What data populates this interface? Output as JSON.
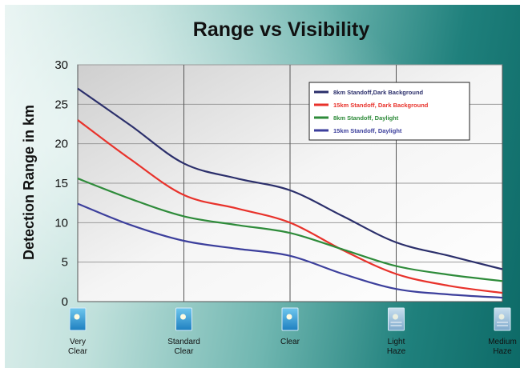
{
  "chart_data": {
    "type": "line",
    "title": "Range vs Visibility",
    "xlabel": "",
    "ylabel": "Detection Range in km",
    "categories": [
      "Very Clear",
      "Standard Clear",
      "Clear",
      "Light Haze",
      "Medium Haze"
    ],
    "y_ticks": [
      "0",
      "5",
      "10",
      "15",
      "20",
      "25",
      "30"
    ],
    "ylim": [
      0,
      30
    ],
    "grid": true,
    "legend_position": "top-right",
    "series": [
      {
        "name": "8km   Standoff,Dark Background",
        "color": "#2b2f6b",
        "x": [
          0,
          0.5,
          1,
          1.5,
          2,
          2.5,
          3,
          3.5,
          4
        ],
        "values": [
          27,
          22.3,
          17.5,
          15.6,
          14.1,
          10.8,
          7.5,
          5.8,
          4.1
        ]
      },
      {
        "name": "15km Standoff, Dark Background",
        "color": "#e8322b",
        "x": [
          0,
          0.5,
          1,
          1.5,
          2,
          2.5,
          3,
          3.5,
          4
        ],
        "values": [
          23,
          18,
          13.5,
          11.8,
          10,
          6.5,
          3.5,
          2,
          1.1
        ]
      },
      {
        "name": "8km   Standoff, Daylight",
        "color": "#2e8b3a",
        "x": [
          0,
          0.5,
          1,
          1.5,
          2,
          2.5,
          3,
          3.5,
          4
        ],
        "values": [
          15.6,
          13,
          10.8,
          9.7,
          8.7,
          6.6,
          4.5,
          3.4,
          2.6
        ]
      },
      {
        "name": "15km Standoff, Daylight",
        "color": "#3c3f9c",
        "x": [
          0,
          0.5,
          1,
          1.5,
          2,
          2.5,
          3,
          3.5,
          4
        ],
        "values": [
          12.4,
          9.7,
          7.7,
          6.7,
          5.8,
          3.5,
          1.6,
          0.9,
          0.5
        ]
      }
    ]
  },
  "x_icons": [
    "weather-icon-very-clear",
    "weather-icon-standard-clear",
    "weather-icon-clear",
    "weather-icon-light-haze",
    "weather-icon-medium-haze"
  ],
  "x_tick_lines": [
    [
      "Very",
      "Clear"
    ],
    [
      "Standard",
      "Clear"
    ],
    [
      "Clear"
    ],
    [
      "Light",
      "Haze"
    ],
    [
      "Medium",
      "Haze"
    ]
  ]
}
